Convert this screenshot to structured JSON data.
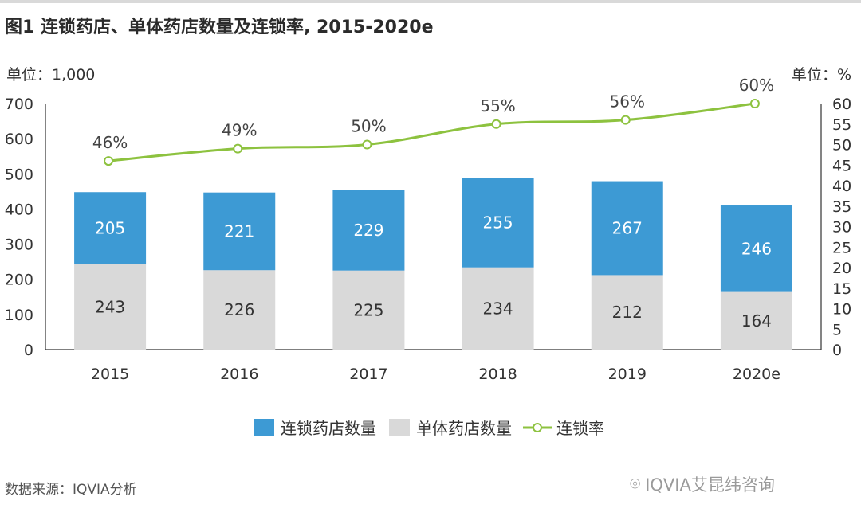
{
  "title": "图1 连锁药店、单体药店数量及连锁率, 2015-2020e",
  "unit_left": "单位：1,000",
  "unit_right": "单位：%",
  "source": "数据来源：IQVIA分析",
  "watermark": "IQVIA艾昆纬咨询",
  "legend": {
    "chain": "连锁药店数量",
    "single": "单体药店数量",
    "rate": "连锁率"
  },
  "colors": {
    "chain": "#3d9ad4",
    "single": "#d9d9d9",
    "rate": "#8dc23f",
    "axis": "#333333"
  },
  "chart_data": {
    "type": "bar",
    "stacked": true,
    "categories": [
      "2015",
      "2016",
      "2017",
      "2018",
      "2019",
      "2020e"
    ],
    "series": [
      {
        "name": "单体药店数量",
        "values": [
          243,
          226,
          225,
          234,
          212,
          164
        ]
      },
      {
        "name": "连锁药店数量",
        "values": [
          205,
          221,
          229,
          255,
          267,
          246
        ]
      }
    ],
    "line_series": {
      "name": "连锁率",
      "values": [
        46,
        49,
        50,
        55,
        56,
        60
      ],
      "labels": [
        "46%",
        "49%",
        "50%",
        "55%",
        "56%",
        "60%"
      ],
      "axis": "right"
    },
    "ylim_left": [
      0,
      700
    ],
    "yticks_left": [
      0,
      100,
      200,
      300,
      400,
      500,
      600,
      700
    ],
    "ylim_right": [
      0,
      60
    ],
    "yticks_right": [
      0,
      5,
      10,
      15,
      20,
      25,
      30,
      35,
      40,
      45,
      50,
      55,
      60
    ],
    "legend_position": "bottom",
    "grid": false
  }
}
